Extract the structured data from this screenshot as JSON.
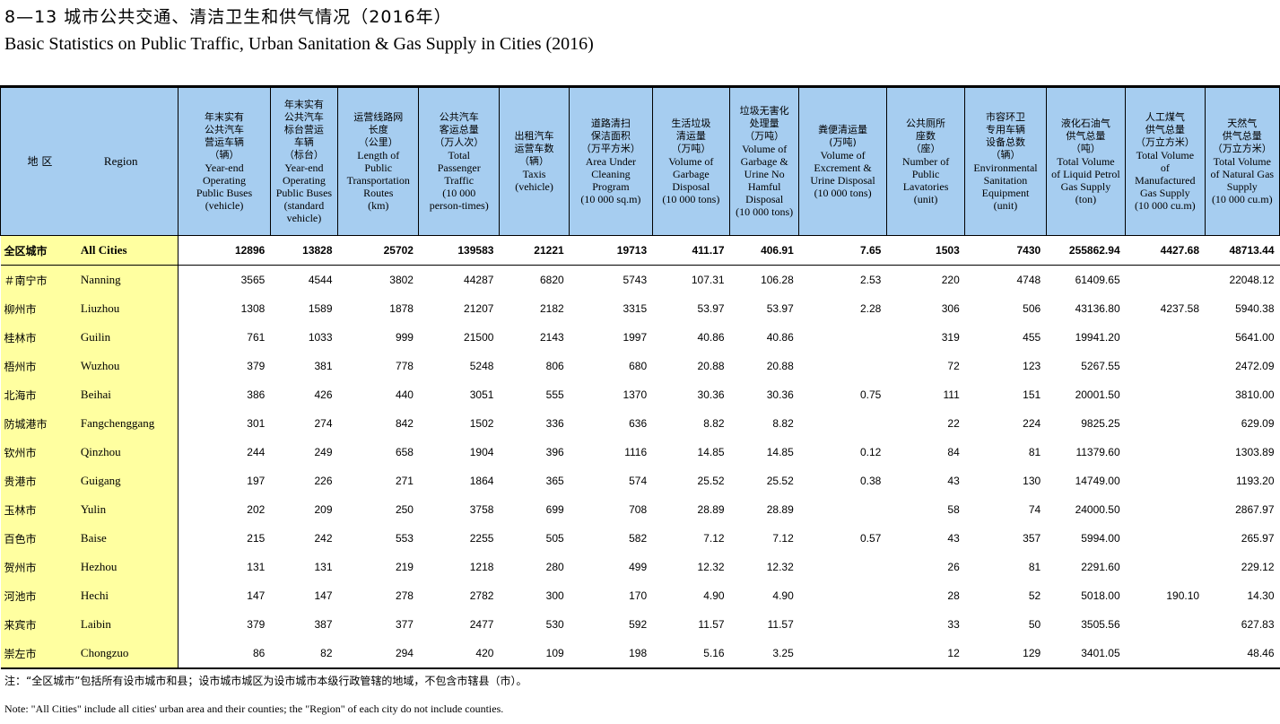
{
  "title_zh": "8—13  城市公共交通、清洁卫生和供气情况（2016年）",
  "title_en": "Basic Statistics on Public Traffic, Urban Sanitation & Gas Supply in Cities (2016)",
  "header": {
    "region_zh": "地  区",
    "region_en": "Region",
    "columns": [
      {
        "zh": "年末实有\n公共汽车\n营运车辆\n（辆）",
        "en": "Year-end\nOperating\nPublic Buses\n(vehicle)"
      },
      {
        "zh": "年末实有\n公共汽车\n标台营运\n车辆\n（标台）",
        "en": "Year-end\nOperating\nPublic Buses\n(standard\nvehicle)"
      },
      {
        "zh": "运营线路网\n长度\n（公里）",
        "en": "Length of\nPublic\nTransportation\nRoutes\n(km)"
      },
      {
        "zh": "公共汽车\n客运总量\n（万人次）",
        "en": "Total\nPassenger\nTraffic\n(10 000\nperson-times)"
      },
      {
        "zh": "出租汽车\n运营车数\n（辆）",
        "en": "Taxis\n(vehicle)"
      },
      {
        "zh": "道路清扫\n保洁面积\n（万平方米）",
        "en": "Area Under\nCleaning\nProgram\n(10 000 sq.m)"
      },
      {
        "zh": "生活垃圾\n清运量\n（万吨）",
        "en": "Volume of\nGarbage\nDisposal\n(10 000 tons)"
      },
      {
        "zh": "垃圾无害化\n处理量\n（万吨）",
        "en": "Volume of\nGarbage &\nUrine No\nHamful\nDisposal\n(10 000 tons)"
      },
      {
        "zh": "粪便清运量\n(万吨)",
        "en": "Volume of\nExcrement &\nUrine Disposal\n(10 000 tons)"
      },
      {
        "zh": "公共厕所\n座数\n（座）",
        "en": "Number of\nPublic\nLavatories\n(unit)"
      },
      {
        "zh": "市容环卫\n专用车辆\n设备总数\n（辆）",
        "en": "Environmental\nSanitation\nEquipment\n(unit)"
      },
      {
        "zh": "液化石油气\n供气总量\n（吨）",
        "en": "Total Volume\nof Liquid Petrol\nGas Supply\n(ton)"
      },
      {
        "zh": "人工煤气\n供气总量\n（万立方米）",
        "en": "Total Volume\nof\nManufactured\nGas Supply\n(10 000 cu.m)"
      },
      {
        "zh": "天然气\n供气总量\n（万立方米）",
        "en": "Total Volume\nof Natural Gas\nSupply\n(10 000 cu.m)"
      }
    ]
  },
  "rows": [
    {
      "zh": "全区城市",
      "en": "All Cities",
      "v": [
        "12896",
        "13828",
        "25702",
        "139583",
        "21221",
        "19713",
        "411.17",
        "406.91",
        "7.65",
        "1503",
        "7430",
        "255862.94",
        "4427.68",
        "48713.44"
      ]
    },
    {
      "zh": "＃南宁市",
      "en": "Nanning",
      "v": [
        "3565",
        "4544",
        "3802",
        "44287",
        "6820",
        "5743",
        "107.31",
        "106.28",
        "2.53",
        "220",
        "4748",
        "61409.65",
        "",
        "22048.12"
      ]
    },
    {
      "zh": "柳州市",
      "en": "Liuzhou",
      "v": [
        "1308",
        "1589",
        "1878",
        "21207",
        "2182",
        "3315",
        "53.97",
        "53.97",
        "2.28",
        "306",
        "506",
        "43136.80",
        "4237.58",
        "5940.38"
      ]
    },
    {
      "zh": "桂林市",
      "en": "Guilin",
      "v": [
        "761",
        "1033",
        "999",
        "21500",
        "2143",
        "1997",
        "40.86",
        "40.86",
        "",
        "319",
        "455",
        "19941.20",
        "",
        "5641.00"
      ]
    },
    {
      "zh": "梧州市",
      "en": "Wuzhou",
      "v": [
        "379",
        "381",
        "778",
        "5248",
        "806",
        "680",
        "20.88",
        "20.88",
        "",
        "72",
        "123",
        "5267.55",
        "",
        "2472.09"
      ]
    },
    {
      "zh": "北海市",
      "en": "Beihai",
      "v": [
        "386",
        "426",
        "440",
        "3051",
        "555",
        "1370",
        "30.36",
        "30.36",
        "0.75",
        "111",
        "151",
        "20001.50",
        "",
        "3810.00"
      ]
    },
    {
      "zh": "防城港市",
      "en": "Fangchenggang",
      "v": [
        "301",
        "274",
        "842",
        "1502",
        "336",
        "636",
        "8.82",
        "8.82",
        "",
        "22",
        "224",
        "9825.25",
        "",
        "629.09"
      ]
    },
    {
      "zh": "钦州市",
      "en": "Qinzhou",
      "v": [
        "244",
        "249",
        "658",
        "1904",
        "396",
        "1116",
        "14.85",
        "14.85",
        "0.12",
        "84",
        "81",
        "11379.60",
        "",
        "1303.89"
      ]
    },
    {
      "zh": "贵港市",
      "en": "Guigang",
      "v": [
        "197",
        "226",
        "271",
        "1864",
        "365",
        "574",
        "25.52",
        "25.52",
        "0.38",
        "43",
        "130",
        "14749.00",
        "",
        "1193.20"
      ]
    },
    {
      "zh": "玉林市",
      "en": "Yulin",
      "v": [
        "202",
        "209",
        "250",
        "3758",
        "699",
        "708",
        "28.89",
        "28.89",
        "",
        "58",
        "74",
        "24000.50",
        "",
        "2867.97"
      ]
    },
    {
      "zh": "百色市",
      "en": "Baise",
      "v": [
        "215",
        "242",
        "553",
        "2255",
        "505",
        "582",
        "7.12",
        "7.12",
        "0.57",
        "43",
        "357",
        "5994.00",
        "",
        "265.97"
      ]
    },
    {
      "zh": "贺州市",
      "en": "Hezhou",
      "v": [
        "131",
        "131",
        "219",
        "1218",
        "280",
        "499",
        "12.32",
        "12.32",
        "",
        "26",
        "81",
        "2291.60",
        "",
        "229.12"
      ]
    },
    {
      "zh": "河池市",
      "en": "Hechi",
      "v": [
        "147",
        "147",
        "278",
        "2782",
        "300",
        "170",
        "4.90",
        "4.90",
        "",
        "28",
        "52",
        "5018.00",
        "190.10",
        "14.30"
      ]
    },
    {
      "zh": "来宾市",
      "en": "Laibin",
      "v": [
        "379",
        "387",
        "377",
        "2477",
        "530",
        "592",
        "11.57",
        "11.57",
        "",
        "33",
        "50",
        "3505.56",
        "",
        "627.83"
      ]
    },
    {
      "zh": "崇左市",
      "en": "Chongzuo",
      "v": [
        "86",
        "82",
        "294",
        "420",
        "109",
        "198",
        "5.16",
        "3.25",
        "",
        "12",
        "129",
        "3401.05",
        "",
        "48.46"
      ]
    }
  ],
  "note_zh": "注：“全区城市”包括所有设市城市和县；设市城市城区为设市城市本级行政管辖的地域，不包含市辖县（市）。",
  "note_en": "Note: \"All Cities\" include all cities' urban area and their counties;  the \"Region\" of each city do not include counties."
}
